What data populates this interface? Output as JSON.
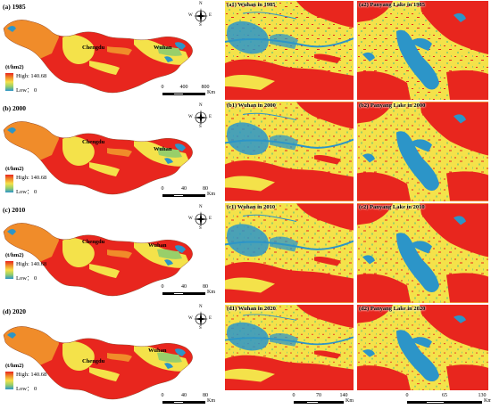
{
  "rows": [
    {
      "basin_label": "(a) 1985",
      "zoom_wuhan_label": "(a1) Wuhan in 1985",
      "zoom_lake_label": "(a2) Panyang Lake  in 1985",
      "basin_scale": [
        "0",
        "400",
        "800"
      ],
      "basin_scale_unit": "Km",
      "zoom_scale": null
    },
    {
      "basin_label": "(b) 2000",
      "zoom_wuhan_label": "(b1) Wuhan in 2000",
      "zoom_lake_label": "(b2) Panyang Lake  in 2000",
      "basin_scale": [
        "0",
        "40",
        "80"
      ],
      "basin_scale_unit": "Km",
      "zoom_scale": null
    },
    {
      "basin_label": "(c) 2010",
      "zoom_wuhan_label": "(c1) Wuhan in 2010",
      "zoom_lake_label": "(c2) Panyang Lake  in 2010",
      "basin_scale": [
        "0",
        "40",
        "80"
      ],
      "basin_scale_unit": "Km",
      "zoom_scale": null
    },
    {
      "basin_label": "(d) 2020",
      "zoom_wuhan_label": "(d1) Wuhan in 2020",
      "zoom_lake_label": "(d2) Panyang Lake  in 2020",
      "basin_scale": [
        "0",
        "40",
        "80"
      ],
      "basin_scale_unit": "Km",
      "zoom_scale": {
        "wuhan": [
          "0",
          "70",
          "140"
        ],
        "wuhan_unit": "Km",
        "lake": [
          "0",
          "65",
          "130"
        ],
        "lake_unit": "Km"
      }
    }
  ],
  "cities": {
    "chengdu": "Chengdu",
    "wuhan": "Wuhan"
  },
  "legend": {
    "unit": "(t/hm2)",
    "high": "High: 140.68",
    "low": "Low： 0"
  },
  "compass": {
    "n": "N",
    "s": "S",
    "e": "E",
    "w": "W"
  },
  "colors": {
    "high": "#e8261e",
    "mid_high": "#f08c2a",
    "mid": "#f4e24a",
    "mid_low": "#98cf6a",
    "low": "#2c95c8"
  }
}
